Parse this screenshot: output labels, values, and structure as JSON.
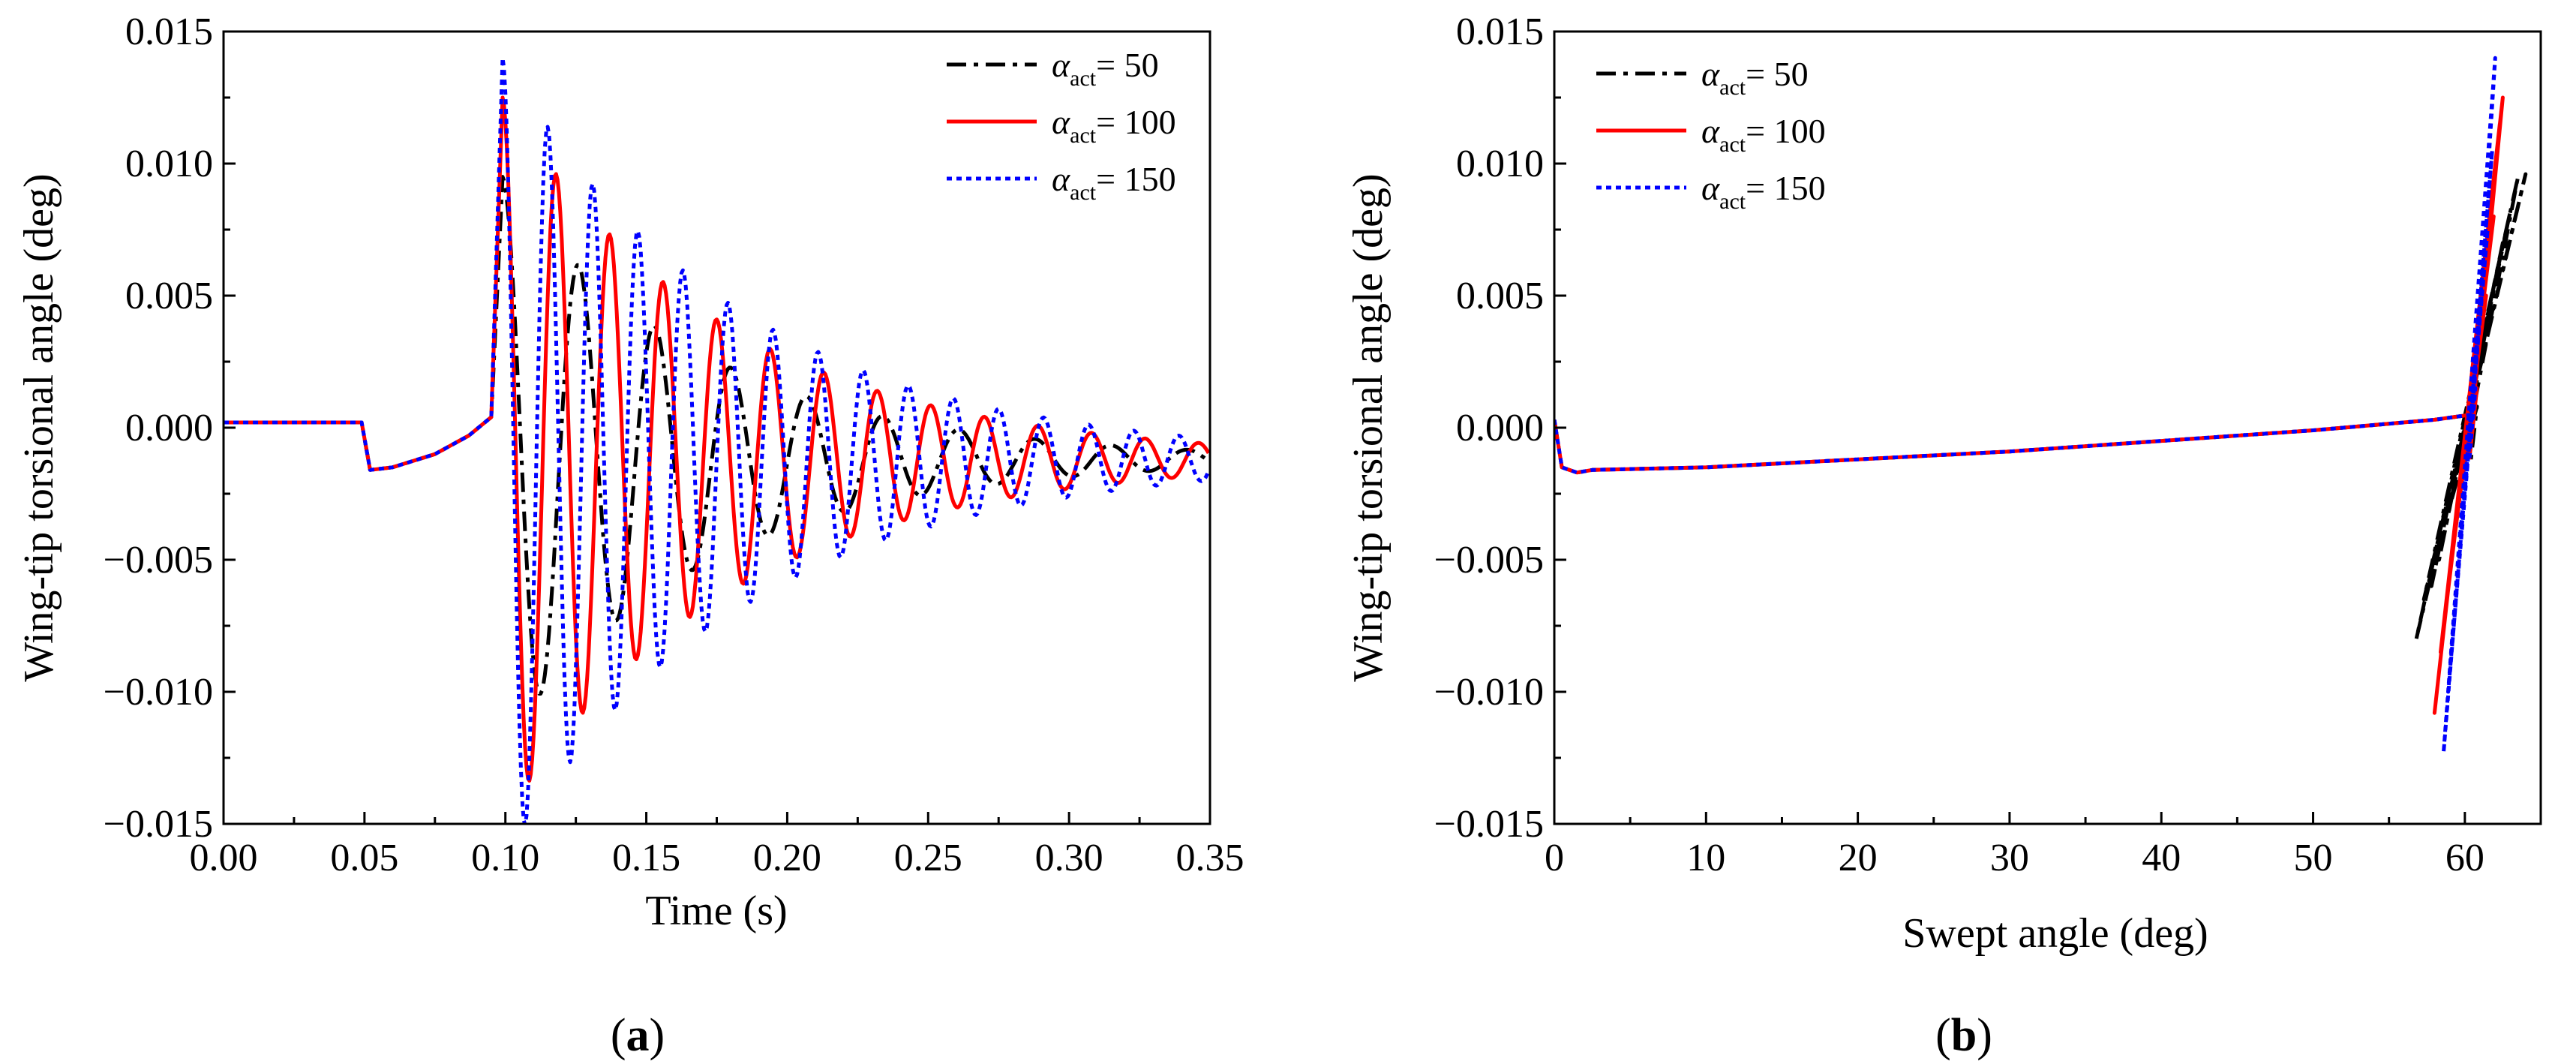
{
  "chart_data": [
    {
      "type": "line",
      "panel_label": "a",
      "xlabel": "Time (s)",
      "ylabel": "Wing-tip torsional angle (deg)",
      "xlim": [
        0.0,
        0.35
      ],
      "ylim": [
        -0.015,
        0.015
      ],
      "xticks": [
        0.0,
        0.05,
        0.1,
        0.15,
        0.2,
        0.25,
        0.3,
        0.35
      ],
      "xtick_labels": [
        "0.00",
        "0.05",
        "0.10",
        "0.15",
        "0.20",
        "0.25",
        "0.30",
        "0.35"
      ],
      "yticks": [
        -0.015,
        -0.01,
        -0.005,
        0.0,
        0.005,
        0.01,
        0.015
      ],
      "ytick_labels": [
        "−0.015",
        "−0.010",
        "−0.005",
        "0.000",
        "0.005",
        "0.010",
        "0.015"
      ],
      "legend_position": "top-right",
      "series": [
        {
          "name_symbol": "α",
          "name_sub": "act",
          "name_value": "= 50",
          "color": "#000000",
          "dash": "dashdot",
          "params": {
            "peak_t": 0.099,
            "peak": 0.0095,
            "period": 0.027,
            "decay": 0.072,
            "offset": -0.0012
          }
        },
        {
          "name_symbol": "α",
          "name_sub": "act",
          "name_value": "= 100",
          "color": "#ff0000",
          "dash": "solid",
          "params": {
            "peak_t": 0.099,
            "peak": 0.0125,
            "period": 0.019,
            "decay": 0.08,
            "offset": -0.0012
          }
        },
        {
          "name_symbol": "α",
          "name_sub": "act",
          "name_value": "= 150",
          "color": "#0000ff",
          "dash": "dotted",
          "params": {
            "peak_t": 0.099,
            "peak": 0.014,
            "period": 0.016,
            "decay": 0.085,
            "offset": -0.0012
          }
        }
      ],
      "common_prefix": [
        [
          0.0,
          0.0002
        ],
        [
          0.049,
          0.0002
        ],
        [
          0.052,
          -0.0016
        ],
        [
          0.06,
          -0.0015
        ],
        [
          0.075,
          -0.001
        ],
        [
          0.087,
          -0.0003
        ],
        [
          0.095,
          0.0004
        ]
      ]
    },
    {
      "type": "line",
      "panel_label": "b",
      "xlabel": "Swept angle (deg)",
      "ylabel": "Wing-tip torsional angle (deg)",
      "xlim": [
        0,
        65
      ],
      "ylim": [
        -0.015,
        0.015
      ],
      "xticks": [
        0,
        10,
        20,
        30,
        40,
        50,
        60
      ],
      "xtick_labels": [
        "0",
        "10",
        "20",
        "30",
        "40",
        "50",
        "60"
      ],
      "yticks": [
        -0.015,
        -0.01,
        -0.005,
        0.0,
        0.005,
        0.01,
        0.015
      ],
      "ytick_labels": [
        "−0.015",
        "−0.010",
        "−0.005",
        "0.000",
        "0.005",
        "0.010",
        "0.015"
      ],
      "legend_position": "top-left",
      "common_path": [
        [
          0,
          0.0003
        ],
        [
          0.5,
          -0.0015
        ],
        [
          1.5,
          -0.0017
        ],
        [
          2.5,
          -0.0016
        ],
        [
          10,
          -0.0015
        ],
        [
          20,
          -0.0012
        ],
        [
          30,
          -0.0009
        ],
        [
          40,
          -0.0005
        ],
        [
          50,
          -0.0001
        ],
        [
          58,
          0.0003
        ],
        [
          60.5,
          0.0005
        ]
      ],
      "series": [
        {
          "name_symbol": "α",
          "name_sub": "act",
          "name_value": "= 50",
          "color": "#000000",
          "dash": "dashdot",
          "burst": [
            [
              60.5,
              0.0005
            ],
            [
              63.5,
              0.0095
            ],
            [
              56.8,
              -0.008
            ],
            [
              64.0,
              0.0096
            ],
            [
              57.3,
              -0.0065
            ],
            [
              63.0,
              0.0082
            ],
            [
              57.8,
              -0.006
            ],
            [
              62.5,
              0.007
            ],
            [
              58.3,
              -0.005
            ],
            [
              61.5,
              0.004
            ],
            [
              59.0,
              -0.003
            ],
            [
              60.8,
              0.0008
            ],
            [
              60.4,
              -0.0012
            ]
          ]
        },
        {
          "name_symbol": "α",
          "name_sub": "act",
          "name_value": "= 100",
          "color": "#ff0000",
          "dash": "solid",
          "burst": [
            [
              60.5,
              0.0005
            ],
            [
              62.5,
              0.0125
            ],
            [
              58.0,
              -0.0108
            ],
            [
              62.3,
              0.0115
            ],
            [
              58.4,
              -0.0085
            ],
            [
              61.9,
              0.008
            ],
            [
              58.9,
              -0.006
            ],
            [
              61.4,
              0.005
            ],
            [
              59.4,
              -0.0035
            ],
            [
              60.8,
              0.0015
            ],
            [
              60.3,
              -0.0012
            ]
          ]
        },
        {
          "name_symbol": "α",
          "name_sub": "act",
          "name_value": "= 150",
          "color": "#0000ff",
          "dash": "dotted",
          "burst": [
            [
              60.5,
              0.0005
            ],
            [
              62.0,
              0.014
            ],
            [
              58.6,
              -0.0123
            ],
            [
              61.8,
              0.0105
            ],
            [
              58.9,
              -0.01
            ],
            [
              61.5,
              0.0075
            ],
            [
              59.3,
              -0.007
            ],
            [
              61.1,
              0.005
            ],
            [
              59.7,
              -0.004
            ],
            [
              60.7,
              0.0015
            ],
            [
              60.3,
              -0.0012
            ]
          ]
        }
      ]
    }
  ]
}
